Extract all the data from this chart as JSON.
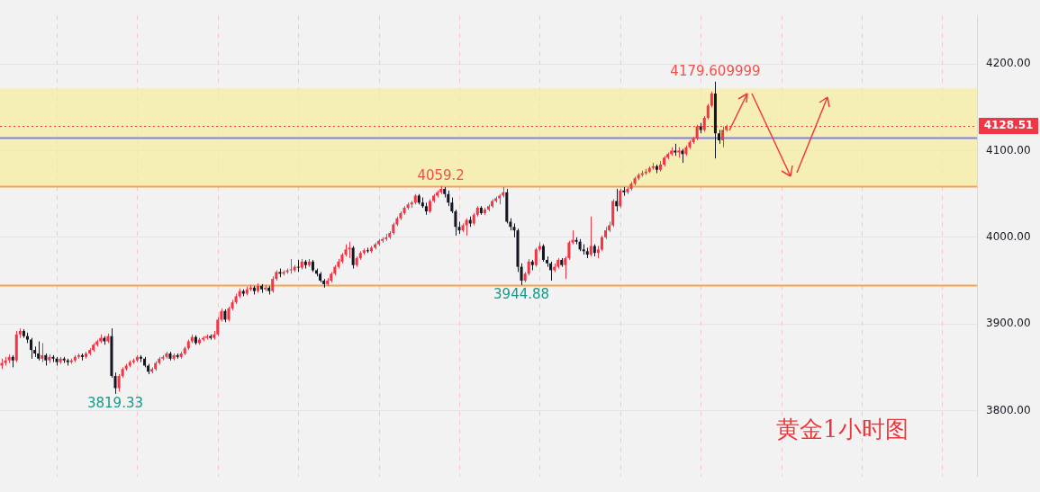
{
  "chart_data": {
    "type": "candlestick",
    "categories": [
      null,
      null,
      null,
      null,
      null,
      null,
      null,
      null,
      null,
      null,
      null,
      null,
      null,
      null,
      null,
      null,
      null,
      null,
      null,
      null,
      null,
      null,
      null,
      null,
      null,
      null,
      null,
      null,
      null,
      null,
      null,
      null,
      null,
      null,
      null,
      null,
      null,
      null,
      null,
      null,
      null,
      null,
      null,
      null,
      null,
      null,
      null,
      null,
      null,
      null,
      null,
      null,
      null,
      null,
      null,
      null,
      null,
      null,
      null,
      null,
      null,
      null,
      null,
      null,
      null,
      null,
      null,
      null,
      null,
      null,
      null,
      null,
      null,
      null,
      null,
      null,
      null,
      null,
      null,
      null,
      null,
      null,
      null,
      null,
      null,
      null,
      null,
      null,
      null,
      null,
      null,
      null,
      null,
      null,
      null,
      null,
      null,
      null,
      null,
      null,
      null,
      null,
      null,
      null,
      null,
      null,
      null,
      null,
      null,
      null,
      null,
      null,
      null,
      null,
      null,
      null,
      null,
      null,
      null,
      null,
      null,
      null,
      null,
      null,
      null,
      null,
      null,
      null,
      null,
      null,
      null,
      null,
      null,
      null,
      null,
      null,
      null,
      null,
      null,
      null,
      null,
      null,
      null,
      null,
      null,
      null,
      null,
      null,
      null,
      null,
      null,
      null,
      null,
      null,
      null,
      null,
      null,
      null,
      null,
      null,
      null,
      null,
      null,
      null,
      null,
      null,
      null,
      null,
      null,
      null,
      null,
      null,
      null,
      null,
      null,
      null,
      null,
      null,
      null,
      null,
      null,
      null,
      null,
      null,
      null,
      null,
      null,
      null,
      null,
      null,
      null,
      null,
      null,
      null,
      null,
      null,
      null,
      null,
      null,
      null,
      null,
      null,
      null,
      null,
      null,
      null,
      null,
      null,
      null,
      null,
      null,
      null,
      null,
      null,
      null,
      null,
      null,
      null,
      null,
      null,
      null,
      null,
      null,
      null,
      null,
      null,
      null,
      null,
      null,
      null,
      null,
      null,
      null,
      null,
      null,
      null,
      null,
      null,
      null,
      null,
      null,
      null,
      null,
      null,
      null,
      null,
      null,
      null,
      null,
      null,
      null,
      null,
      null,
      null,
      null,
      null,
      null,
      null,
      null,
      null,
      null,
      null,
      null,
      null,
      null,
      null,
      null
    ],
    "ohlc": [
      [
        3852,
        3860,
        3848,
        3855
      ],
      [
        3855,
        3862,
        3852,
        3858
      ],
      [
        3858,
        3865,
        3855,
        3862
      ],
      [
        3862,
        3864,
        3850,
        3858
      ],
      [
        3858,
        3892,
        3856,
        3888
      ],
      [
        3888,
        3895,
        3884,
        3892
      ],
      [
        3892,
        3894,
        3884,
        3886
      ],
      [
        3886,
        3890,
        3878,
        3882
      ],
      [
        3882,
        3884,
        3860,
        3870
      ],
      [
        3870,
        3874,
        3862,
        3866
      ],
      [
        3866,
        3880,
        3858,
        3860
      ],
      [
        3860,
        3878,
        3856,
        3864
      ],
      [
        3864,
        3866,
        3852,
        3858
      ],
      [
        3858,
        3865,
        3855,
        3862
      ],
      [
        3862,
        3864,
        3856,
        3860
      ],
      [
        3860,
        3862,
        3852,
        3856
      ],
      [
        3856,
        3862,
        3854,
        3860
      ],
      [
        3860,
        3862,
        3855,
        3858
      ],
      [
        3858,
        3860,
        3852,
        3856
      ],
      [
        3856,
        3860,
        3854,
        3858
      ],
      [
        3858,
        3864,
        3856,
        3862
      ],
      [
        3862,
        3866,
        3860,
        3864
      ],
      [
        3864,
        3866,
        3858,
        3862
      ],
      [
        3862,
        3868,
        3860,
        3866
      ],
      [
        3866,
        3872,
        3864,
        3870
      ],
      [
        3870,
        3878,
        3868,
        3876
      ],
      [
        3876,
        3882,
        3874,
        3880
      ],
      [
        3880,
        3888,
        3878,
        3884
      ],
      [
        3884,
        3886,
        3876,
        3880
      ],
      [
        3880,
        3889,
        3878,
        3886
      ],
      [
        3886,
        3895,
        3838,
        3840
      ],
      [
        3840,
        3844,
        3819.33,
        3826
      ],
      [
        3826,
        3842,
        3822,
        3840
      ],
      [
        3840,
        3850,
        3838,
        3848
      ],
      [
        3848,
        3854,
        3846,
        3852
      ],
      [
        3852,
        3858,
        3850,
        3856
      ],
      [
        3856,
        3860,
        3854,
        3858
      ],
      [
        3858,
        3864,
        3856,
        3862
      ],
      [
        3862,
        3864,
        3856,
        3860
      ],
      [
        3860,
        3862,
        3850,
        3852
      ],
      [
        3852,
        3854,
        3842,
        3845
      ],
      [
        3845,
        3850,
        3843,
        3848
      ],
      [
        3848,
        3857,
        3846,
        3855
      ],
      [
        3855,
        3862,
        3853,
        3860
      ],
      [
        3860,
        3864,
        3858,
        3862
      ],
      [
        3862,
        3868,
        3860,
        3866
      ],
      [
        3866,
        3868,
        3858,
        3860
      ],
      [
        3860,
        3866,
        3858,
        3864
      ],
      [
        3864,
        3866,
        3860,
        3862
      ],
      [
        3862,
        3868,
        3860,
        3866
      ],
      [
        3866,
        3874,
        3864,
        3872
      ],
      [
        3872,
        3882,
        3870,
        3880
      ],
      [
        3880,
        3888,
        3878,
        3885
      ],
      [
        3885,
        3887,
        3876,
        3878
      ],
      [
        3878,
        3884,
        3876,
        3882
      ],
      [
        3882,
        3886,
        3880,
        3884
      ],
      [
        3884,
        3888,
        3882,
        3886
      ],
      [
        3886,
        3888,
        3882,
        3884
      ],
      [
        3884,
        3892,
        3882,
        3888
      ],
      [
        3888,
        3908,
        3886,
        3905
      ],
      [
        3905,
        3918,
        3903,
        3915
      ],
      [
        3915,
        3917,
        3902,
        3905
      ],
      [
        3905,
        3920,
        3903,
        3918
      ],
      [
        3918,
        3928,
        3916,
        3925
      ],
      [
        3925,
        3935,
        3923,
        3932
      ],
      [
        3932,
        3941,
        3930,
        3938
      ],
      [
        3938,
        3940,
        3932,
        3935
      ],
      [
        3935,
        3943,
        3933,
        3940
      ],
      [
        3940,
        3945,
        3938,
        3942
      ],
      [
        3942,
        3944,
        3934,
        3938
      ],
      [
        3938,
        3947,
        3936,
        3944
      ],
      [
        3944,
        3946,
        3936,
        3940
      ],
      [
        3940,
        3945,
        3938,
        3942
      ],
      [
        3942,
        3944,
        3934,
        3938
      ],
      [
        3938,
        3955,
        3936,
        3952
      ],
      [
        3952,
        3962,
        3950,
        3960
      ],
      [
        3960,
        3964,
        3954,
        3958
      ],
      [
        3958,
        3962,
        3956,
        3960
      ],
      [
        3960,
        3964,
        3958,
        3962
      ],
      [
        3962,
        3975,
        3958,
        3962
      ],
      [
        3962,
        3968,
        3960,
        3966
      ],
      [
        3966,
        3974,
        3960,
        3965
      ],
      [
        3965,
        3975,
        3963,
        3972
      ],
      [
        3972,
        3974,
        3964,
        3968
      ],
      [
        3968,
        3975,
        3966,
        3972
      ],
      [
        3972,
        3974,
        3960,
        3962
      ],
      [
        3962,
        3964,
        3955,
        3958
      ],
      [
        3958,
        3960,
        3948,
        3950
      ],
      [
        3950,
        3952,
        3942,
        3946
      ],
      [
        3946,
        3953,
        3944,
        3950
      ],
      [
        3950,
        3960,
        3948,
        3958
      ],
      [
        3958,
        3968,
        3956,
        3966
      ],
      [
        3966,
        3975,
        3964,
        3972
      ],
      [
        3972,
        3982,
        3970,
        3980
      ],
      [
        3980,
        3992,
        3978,
        3986
      ],
      [
        3986,
        3995,
        3976,
        3988
      ],
      [
        3988,
        3990,
        3964,
        3968
      ],
      [
        3968,
        3978,
        3966,
        3976
      ],
      [
        3976,
        3984,
        3974,
        3982
      ],
      [
        3982,
        3987,
        3980,
        3985
      ],
      [
        3985,
        3988,
        3982,
        3984
      ],
      [
        3984,
        3990,
        3982,
        3988
      ],
      [
        3988,
        3994,
        3986,
        3992
      ],
      [
        3992,
        3998,
        3990,
        3996
      ],
      [
        3996,
        4000,
        3994,
        3998
      ],
      [
        3998,
        4004,
        3996,
        4000
      ],
      [
        4000,
        4007,
        3998,
        4005
      ],
      [
        4005,
        4017,
        4003,
        4015
      ],
      [
        4015,
        4024,
        4013,
        4022
      ],
      [
        4022,
        4030,
        4020,
        4028
      ],
      [
        4028,
        4036,
        4026,
        4034
      ],
      [
        4034,
        4040,
        4032,
        4038
      ],
      [
        4038,
        4042,
        4034,
        4040
      ],
      [
        4040,
        4050,
        4038,
        4048
      ],
      [
        4048,
        4050,
        4038,
        4040
      ],
      [
        4040,
        4046,
        4034,
        4036
      ],
      [
        4036,
        4040,
        4026,
        4030
      ],
      [
        4030,
        4044,
        4028,
        4042
      ],
      [
        4042,
        4050,
        4040,
        4048
      ],
      [
        4048,
        4054,
        4046,
        4052
      ],
      [
        4052,
        4059.2,
        4050,
        4056
      ],
      [
        4056,
        4058,
        4046,
        4050
      ],
      [
        4050,
        4054,
        4036,
        4040
      ],
      [
        4040,
        4046,
        4028,
        4030
      ],
      [
        4030,
        4032,
        4002,
        4012
      ],
      [
        4012,
        4018,
        4004,
        4008
      ],
      [
        4008,
        4016,
        4006,
        4014
      ],
      [
        4014,
        4022,
        4002,
        4020
      ],
      [
        4020,
        4024,
        4012,
        4016
      ],
      [
        4016,
        4028,
        4014,
        4026
      ],
      [
        4026,
        4036,
        4024,
        4034
      ],
      [
        4034,
        4036,
        4026,
        4028
      ],
      [
        4028,
        4034,
        4026,
        4032
      ],
      [
        4032,
        4038,
        4030,
        4036
      ],
      [
        4036,
        4044,
        4034,
        4042
      ],
      [
        4042,
        4047,
        4040,
        4045
      ],
      [
        4045,
        4050,
        4038,
        4048
      ],
      [
        4048,
        4058,
        4046,
        4052
      ],
      [
        4052,
        4056,
        4016,
        4018
      ],
      [
        4018,
        4022,
        4008,
        4012
      ],
      [
        4012,
        4016,
        4000,
        4008
      ],
      [
        4008,
        4010,
        3960,
        3966
      ],
      [
        3966,
        3970,
        3944.88,
        3950
      ],
      [
        3950,
        3960,
        3948,
        3958
      ],
      [
        3958,
        3975,
        3956,
        3972
      ],
      [
        3972,
        3974,
        3962,
        3968
      ],
      [
        3968,
        3988,
        3966,
        3986
      ],
      [
        3986,
        3994,
        3984,
        3990
      ],
      [
        3990,
        3992,
        3972,
        3974
      ],
      [
        3974,
        3978,
        3966,
        3970
      ],
      [
        3970,
        3972,
        3950,
        3962
      ],
      [
        3962,
        3970,
        3960,
        3966
      ],
      [
        3966,
        3976,
        3964,
        3974
      ],
      [
        3974,
        3976,
        3966,
        3968
      ],
      [
        3968,
        3978,
        3952,
        3976
      ],
      [
        3976,
        3996,
        3974,
        3994
      ],
      [
        3994,
        4008,
        3992,
        3997
      ],
      [
        3997,
        4000,
        3992,
        3995
      ],
      [
        3995,
        3998,
        3984,
        3986
      ],
      [
        3986,
        3992,
        3980,
        3984
      ],
      [
        3984,
        3988,
        3976,
        3980
      ],
      [
        3980,
        4024,
        3978,
        3990
      ],
      [
        3990,
        3992,
        3978,
        3982
      ],
      [
        3982,
        3990,
        3976,
        3986
      ],
      [
        3986,
        4002,
        3984,
        4000
      ],
      [
        4000,
        4012,
        3998,
        4008
      ],
      [
        4008,
        4018,
        4006,
        4014
      ],
      [
        4014,
        4044,
        4012,
        4042
      ],
      [
        4042,
        4056,
        4030,
        4036
      ],
      [
        4036,
        4056,
        4034,
        4054
      ],
      [
        4054,
        4058,
        4048,
        4052
      ],
      [
        4052,
        4058,
        4050,
        4056
      ],
      [
        4056,
        4064,
        4054,
        4062
      ],
      [
        4062,
        4070,
        4060,
        4068
      ],
      [
        4068,
        4074,
        4066,
        4072
      ],
      [
        4072,
        4077,
        4070,
        4074
      ],
      [
        4074,
        4079,
        4072,
        4076
      ],
      [
        4076,
        4082,
        4074,
        4080
      ],
      [
        4080,
        4086,
        4078,
        4082
      ],
      [
        4082,
        4084,
        4074,
        4078
      ],
      [
        4078,
        4088,
        4076,
        4084
      ],
      [
        4084,
        4094,
        4082,
        4092
      ],
      [
        4092,
        4098,
        4090,
        4096
      ],
      [
        4096,
        4104,
        4094,
        4100
      ],
      [
        4100,
        4108,
        4094,
        4098
      ],
      [
        4098,
        4104,
        4092,
        4100
      ],
      [
        4100,
        4102,
        4086,
        4096
      ],
      [
        4096,
        4106,
        4094,
        4104
      ],
      [
        4104,
        4112,
        4102,
        4110
      ],
      [
        4110,
        4116,
        4108,
        4114
      ],
      [
        4114,
        4130,
        4112,
        4128
      ],
      [
        4128,
        4132,
        4120,
        4124
      ],
      [
        4124,
        4140,
        4122,
        4138
      ],
      [
        4138,
        4154,
        4136,
        4152
      ],
      [
        4152,
        4168,
        4150,
        4166
      ],
      [
        4166,
        4179.609999,
        4091,
        4120
      ],
      [
        4120,
        4124,
        4108,
        4112
      ],
      [
        4112,
        4128,
        4104,
        4124
      ],
      [
        4124,
        4130,
        4122,
        4128.51
      ],
      null,
      null,
      null,
      null,
      null,
      null,
      null,
      null,
      null,
      null,
      null,
      null,
      null,
      null,
      null,
      null,
      null,
      null,
      null,
      null,
      null,
      null,
      null,
      null,
      null,
      null,
      null,
      null,
      null,
      null,
      null,
      null,
      null,
      null,
      null,
      null,
      null,
      null,
      null,
      null,
      null,
      null,
      null,
      null,
      null,
      null,
      null,
      null,
      null,
      null,
      null,
      null,
      null,
      null,
      null,
      null,
      null,
      null,
      null,
      null,
      null,
      null,
      null,
      null,
      null,
      null,
      null,
      null
    ],
    "ylim": [
      3724,
      4256
    ],
    "yticks": [
      {
        "value": 3800,
        "label": "3800.00"
      },
      {
        "value": 3900,
        "label": "3900.00"
      },
      {
        "value": 4000,
        "label": "4000.00"
      },
      {
        "value": 4100,
        "label": "4100.00"
      },
      {
        "value": 4200,
        "label": "4200.00"
      }
    ],
    "grid": "y",
    "tick_labels": "y",
    "bands": [
      {
        "axis": "y",
        "from": 4059.2,
        "to": 4172,
        "color": "#f5eea0"
      }
    ],
    "ref_lines": [
      {
        "axis": "y",
        "value": 4128.51,
        "label": "4128.51",
        "color": "#f23645",
        "line_style": "dotted"
      },
      {
        "axis": "y",
        "value": 4115,
        "color": "#7e7ff0"
      },
      {
        "axis": "y",
        "value": 4059.2,
        "color": "#f7a24a"
      },
      {
        "axis": "y",
        "value": 3944.88,
        "color": "#f7a24a"
      }
    ],
    "annotations": [
      {
        "text": "4179.609999",
        "y": 4179.609999
      },
      {
        "text": "4059.2",
        "y": 4059.2
      },
      {
        "text": "3944.88",
        "y": 3944.88
      },
      {
        "text": "3819.33",
        "y": 3819.33
      },
      "黄金1小时图"
    ]
  }
}
